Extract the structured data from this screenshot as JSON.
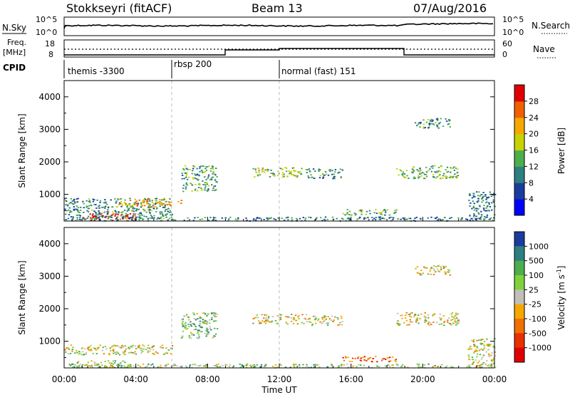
{
  "header": {
    "station": "Stokkseyri (fitACF)",
    "beam": "Beam 13",
    "date": "07/Aug/2016"
  },
  "top_panel": {
    "nsky_label": "N.Sky",
    "nsky_ticks": [
      "10^5",
      "10^0"
    ],
    "nsearch_label": "N.Search",
    "nsearch_ticks": [
      "10^5",
      "10^0"
    ],
    "freq_label_1": "Freq.",
    "freq_label_2": "[MHz]",
    "freq_ticks": [
      "18",
      "8"
    ],
    "nave_label": "Nave",
    "nave_ticks": [
      "60",
      "0"
    ],
    "cpid_label": "CPID",
    "cpid_segments": [
      {
        "label": "themis -3300",
        "start": 0,
        "end": 6
      },
      {
        "label": "rbsp 200",
        "start": 6,
        "end": 12
      },
      {
        "label": "normal (fast) 151",
        "start": 12,
        "end": 24
      }
    ]
  },
  "chart_data": [
    {
      "type": "heatmap",
      "ylabel": "Slant Range [km]",
      "ylim": [
        180,
        4500
      ],
      "yticks": [
        "1000",
        "2000",
        "3000",
        "4000"
      ],
      "xlim": [
        0,
        24
      ],
      "colorbar_label": "Power [dB]",
      "colorbar_ticks": [
        "4",
        "8",
        "12",
        "16",
        "20",
        "24",
        "28"
      ],
      "colorbar_colors": [
        "#0000ff",
        "#1a3c9e",
        "#2e7f7f",
        "#4cae4c",
        "#c8d200",
        "#f5a800",
        "#f06000",
        "#e00000"
      ],
      "vertical_markers": [
        6,
        12
      ],
      "scatter_regions": [
        {
          "t": [
            0.0,
            6.0
          ],
          "r": [
            250,
            900
          ],
          "level": 0.35
        },
        {
          "t": [
            1.0,
            4.0
          ],
          "r": [
            200,
            420
          ],
          "level": 0.9
        },
        {
          "t": [
            3.0,
            6.5
          ],
          "r": [
            650,
            870
          ],
          "level": 0.7
        },
        {
          "t": [
            6.5,
            8.5
          ],
          "r": [
            1100,
            1900
          ],
          "level": 0.4
        },
        {
          "t": [
            10.5,
            13.5
          ],
          "r": [
            1550,
            1850
          ],
          "level": 0.5
        },
        {
          "t": [
            13.5,
            15.5
          ],
          "r": [
            1500,
            1800
          ],
          "level": 0.35
        },
        {
          "t": [
            15.5,
            18.5
          ],
          "r": [
            380,
            560
          ],
          "level": 0.4
        },
        {
          "t": [
            18.5,
            22.0
          ],
          "r": [
            1500,
            1900
          ],
          "level": 0.45
        },
        {
          "t": [
            19.5,
            21.5
          ],
          "r": [
            3050,
            3350
          ],
          "level": 0.35
        },
        {
          "t": [
            0.0,
            24.0
          ],
          "r": [
            200,
            320
          ],
          "level": 0.3
        },
        {
          "t": [
            22.5,
            24.0
          ],
          "r": [
            250,
            1100
          ],
          "level": 0.3
        }
      ]
    },
    {
      "type": "heatmap",
      "ylabel": "Slant Range [km]",
      "xlabel": "Time UT",
      "ylim": [
        180,
        4500
      ],
      "yticks": [
        "1000",
        "2000",
        "3000",
        "4000"
      ],
      "xlim": [
        0,
        24
      ],
      "xticks": [
        "00:00",
        "04:00",
        "08:00",
        "12:00",
        "16:00",
        "20:00",
        "00:00"
      ],
      "colorbar_label": "Velocity [m s",
      "colorbar_label_sup": "-1",
      "colorbar_label_end": "]",
      "colorbar_ticks": [
        "1000",
        "500",
        "100",
        "25",
        "-25",
        "-100",
        "-500",
        "-1000"
      ],
      "colorbar_colors": [
        "#1a3c9e",
        "#2e7f7f",
        "#4cae4c",
        "#7fd23c",
        "#c0c0b8",
        "#f5a800",
        "#f07000",
        "#e83000",
        "#e00000"
      ],
      "vertical_markers": [
        6,
        12
      ],
      "scatter_regions": [
        {
          "t": [
            0.0,
            6.0
          ],
          "r": [
            600,
            900
          ],
          "level": 0.5
        },
        {
          "t": [
            0.5,
            3.5
          ],
          "r": [
            200,
            420
          ],
          "level": 0.6
        },
        {
          "t": [
            6.5,
            8.5
          ],
          "r": [
            1100,
            1900
          ],
          "level": 0.65
        },
        {
          "t": [
            10.5,
            13.5
          ],
          "r": [
            1550,
            1850
          ],
          "level": 0.5
        },
        {
          "t": [
            13.5,
            15.5
          ],
          "r": [
            1500,
            1800
          ],
          "level": 0.5
        },
        {
          "t": [
            15.5,
            18.5
          ],
          "r": [
            380,
            560
          ],
          "level": 0.2
        },
        {
          "t": [
            18.5,
            22.0
          ],
          "r": [
            1500,
            1900
          ],
          "level": 0.5
        },
        {
          "t": [
            19.5,
            21.5
          ],
          "r": [
            3050,
            3350
          ],
          "level": 0.5
        },
        {
          "t": [
            0.0,
            24.0
          ],
          "r": [
            200,
            320
          ],
          "level": 0.6
        },
        {
          "t": [
            22.5,
            24.0
          ],
          "r": [
            250,
            1100
          ],
          "level": 0.5
        }
      ]
    }
  ]
}
